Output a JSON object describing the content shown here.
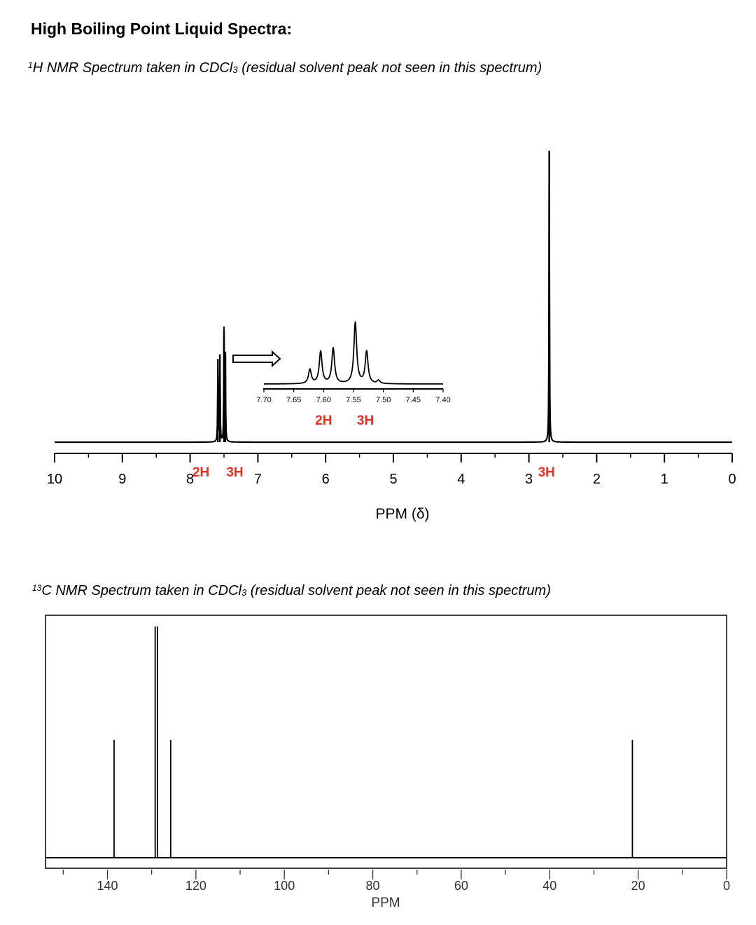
{
  "title": "High Boiling Point Liquid Spectra:",
  "h1_caption": {
    "sup": "1",
    "pre": "H NMR Spectrum taken in CDCl",
    "sub": "3",
    "post": " (residual solvent peak not seen in this spectrum)"
  },
  "c13_caption": {
    "sup": "13",
    "pre": "C NMR Spectrum taken in CDCl",
    "sub": "3",
    "post": " (residual solvent peak not seen in this spectrum)"
  },
  "colors": {
    "integration_label": "#e8301e",
    "trace": "#000000"
  },
  "chart_data": [
    {
      "type": "line",
      "subtype": "1H NMR spectrum",
      "xlabel": "PPM (δ)",
      "xlim": [
        10,
        0
      ],
      "x_reversed": true,
      "x_ticks": [
        "10",
        "9",
        "8",
        "7",
        "6",
        "5",
        "4",
        "3",
        "2",
        "1",
        "0"
      ],
      "x_tick_values": [
        10,
        9,
        8,
        7,
        6,
        5,
        4,
        3,
        2,
        1,
        0
      ],
      "peaks": [
        {
          "ppm": 7.59,
          "intensity": 0.9
        },
        {
          "ppm": 7.56,
          "intensity": 0.95
        },
        {
          "ppm": 7.5,
          "intensity": 1.2
        },
        {
          "ppm": 7.48,
          "intensity": 0.95
        },
        {
          "ppm": 2.7,
          "intensity": 3.15
        }
      ],
      "integration_labels": [
        {
          "ppm": 7.84,
          "text": "2H"
        },
        {
          "ppm": 7.34,
          "text": "3H"
        },
        {
          "ppm": 2.74,
          "text": "3H"
        }
      ],
      "inset": {
        "xlim": [
          7.7,
          7.4
        ],
        "x_ticks": [
          "7.70",
          "7.65",
          "7.60",
          "7.55",
          "7.50",
          "7.45",
          "7.40"
        ],
        "x_tick_values": [
          7.7,
          7.65,
          7.6,
          7.55,
          7.5,
          7.45,
          7.4
        ],
        "peaks": [
          {
            "ppm": 7.623,
            "intensity": 0.22
          },
          {
            "ppm": 7.605,
            "intensity": 0.5
          },
          {
            "ppm": 7.584,
            "intensity": 0.55
          },
          {
            "ppm": 7.547,
            "intensity": 0.95
          },
          {
            "ppm": 7.528,
            "intensity": 0.5
          },
          {
            "ppm": 7.508,
            "intensity": 0.05
          }
        ],
        "labels": [
          {
            "ppm": 7.6,
            "text": "2H"
          },
          {
            "ppm": 7.53,
            "text": "3H"
          }
        ]
      }
    },
    {
      "type": "bar",
      "subtype": "13C NMR spectrum",
      "xlabel": "PPM",
      "xlim": [
        154,
        0
      ],
      "x_reversed": true,
      "x_ticks": [
        "140",
        "120",
        "100",
        "80",
        "60",
        "40",
        "20",
        "0"
      ],
      "x_tick_values": [
        140,
        120,
        100,
        80,
        60,
        40,
        20,
        0
      ],
      "peaks": [
        {
          "ppm": 138.5,
          "intensity": 0.51
        },
        {
          "ppm": 129.2,
          "intensity": 1.0
        },
        {
          "ppm": 128.7,
          "intensity": 1.0
        },
        {
          "ppm": 125.7,
          "intensity": 0.51
        },
        {
          "ppm": 21.3,
          "intensity": 0.51
        }
      ]
    }
  ]
}
